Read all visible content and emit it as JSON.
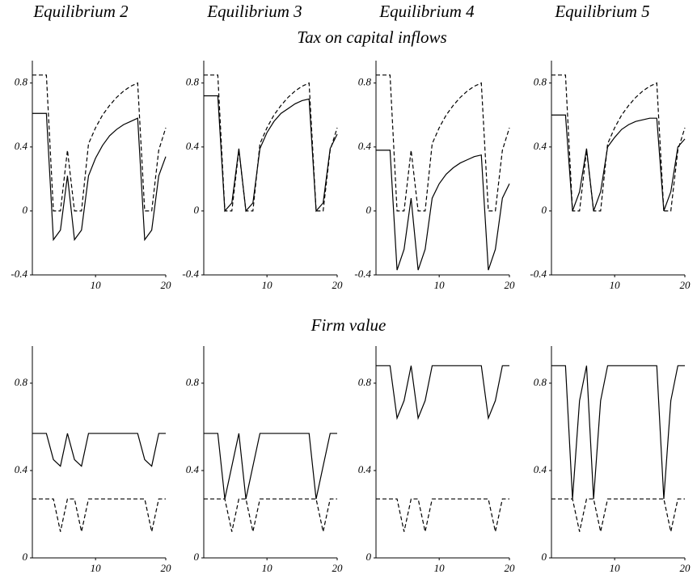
{
  "column_titles": [
    "Equilibrium 2",
    "Equilibrium 3",
    "Equilibrium 4",
    "Equilibrium 5"
  ],
  "row_titles": [
    "Tax on capital inflows",
    "Firm value"
  ],
  "chart_data": [
    {
      "type": "line",
      "x": [
        1,
        2,
        3,
        4,
        5,
        6,
        7,
        8,
        9,
        10,
        11,
        12,
        13,
        14,
        15,
        16,
        17,
        18,
        19,
        20
      ],
      "xlim": [
        1,
        20
      ],
      "xticks": [
        10,
        20
      ],
      "ylim": [
        -0.4,
        0.94
      ],
      "yticks": [
        -0.4,
        0,
        0.4,
        0.8
      ],
      "series": [
        {
          "style": "solid",
          "color": "#000000",
          "values": [
            0.61,
            0.61,
            0.61,
            -0.18,
            -0.12,
            0.22,
            -0.18,
            -0.12,
            0.22,
            0.33,
            0.41,
            0.47,
            0.51,
            0.54,
            0.56,
            0.58,
            -0.18,
            -0.12,
            0.22,
            0.34
          ]
        },
        {
          "style": "dashed",
          "color": "#000000",
          "values": [
            0.85,
            0.85,
            0.85,
            0,
            0,
            0.38,
            0,
            0,
            0.42,
            0.52,
            0.6,
            0.66,
            0.71,
            0.75,
            0.78,
            0.8,
            0,
            0,
            0.38,
            0.52
          ]
        }
      ]
    },
    {
      "type": "line",
      "x": [
        1,
        2,
        3,
        4,
        5,
        6,
        7,
        8,
        9,
        10,
        11,
        12,
        13,
        14,
        15,
        16,
        17,
        18,
        19,
        20
      ],
      "xlim": [
        1,
        20
      ],
      "xticks": [
        10,
        20
      ],
      "ylim": [
        -0.4,
        0.94
      ],
      "yticks": [
        -0.4,
        0,
        0.4,
        0.8
      ],
      "series": [
        {
          "style": "solid",
          "color": "#000000",
          "values": [
            0.72,
            0.72,
            0.72,
            0,
            0.05,
            0.39,
            0,
            0.05,
            0.39,
            0.49,
            0.56,
            0.61,
            0.64,
            0.67,
            0.69,
            0.7,
            0,
            0.05,
            0.39,
            0.48
          ]
        },
        {
          "style": "dashed",
          "color": "#000000",
          "values": [
            0.85,
            0.85,
            0.85,
            0,
            0,
            0.38,
            0,
            0,
            0.42,
            0.52,
            0.6,
            0.66,
            0.71,
            0.75,
            0.78,
            0.8,
            0,
            0,
            0.38,
            0.52
          ]
        }
      ]
    },
    {
      "type": "line",
      "x": [
        1,
        2,
        3,
        4,
        5,
        6,
        7,
        8,
        9,
        10,
        11,
        12,
        13,
        14,
        15,
        16,
        17,
        18,
        19,
        20
      ],
      "xlim": [
        1,
        20
      ],
      "xticks": [
        10,
        20
      ],
      "ylim": [
        -0.4,
        0.94
      ],
      "yticks": [
        -0.4,
        0,
        0.4,
        0.8
      ],
      "series": [
        {
          "style": "solid",
          "color": "#000000",
          "values": [
            0.38,
            0.38,
            0.38,
            -0.37,
            -0.24,
            0.08,
            -0.37,
            -0.24,
            0.08,
            0.17,
            0.23,
            0.27,
            0.3,
            0.32,
            0.34,
            0.35,
            -0.37,
            -0.24,
            0.08,
            0.17
          ]
        },
        {
          "style": "dashed",
          "color": "#000000",
          "values": [
            0.85,
            0.85,
            0.85,
            0,
            0,
            0.38,
            0,
            0,
            0.42,
            0.52,
            0.6,
            0.66,
            0.71,
            0.75,
            0.78,
            0.8,
            0,
            0,
            0.38,
            0.52
          ]
        }
      ]
    },
    {
      "type": "line",
      "x": [
        1,
        2,
        3,
        4,
        5,
        6,
        7,
        8,
        9,
        10,
        11,
        12,
        13,
        14,
        15,
        16,
        17,
        18,
        19,
        20
      ],
      "xlim": [
        1,
        20
      ],
      "xticks": [
        10,
        20
      ],
      "ylim": [
        -0.4,
        0.94
      ],
      "yticks": [
        -0.4,
        0,
        0.4,
        0.8
      ],
      "series": [
        {
          "style": "solid",
          "color": "#000000",
          "values": [
            0.6,
            0.6,
            0.6,
            0,
            0.12,
            0.39,
            0,
            0.12,
            0.4,
            0.46,
            0.51,
            0.54,
            0.56,
            0.57,
            0.58,
            0.58,
            0,
            0.12,
            0.4,
            0.45
          ]
        },
        {
          "style": "dashed",
          "color": "#000000",
          "values": [
            0.85,
            0.85,
            0.85,
            0,
            0,
            0.38,
            0,
            0,
            0.42,
            0.52,
            0.6,
            0.66,
            0.71,
            0.75,
            0.78,
            0.8,
            0,
            0,
            0.38,
            0.52
          ]
        }
      ]
    },
    {
      "type": "line",
      "x": [
        1,
        2,
        3,
        4,
        5,
        6,
        7,
        8,
        9,
        10,
        11,
        12,
        13,
        14,
        15,
        16,
        17,
        18,
        19,
        20
      ],
      "xlim": [
        1,
        20
      ],
      "xticks": [
        10,
        20
      ],
      "ylim": [
        0,
        0.97
      ],
      "yticks": [
        0,
        0.4,
        0.8
      ],
      "series": [
        {
          "style": "solid",
          "color": "#000000",
          "values": [
            0.57,
            0.57,
            0.57,
            0.45,
            0.42,
            0.57,
            0.45,
            0.42,
            0.57,
            0.57,
            0.57,
            0.57,
            0.57,
            0.57,
            0.57,
            0.57,
            0.45,
            0.42,
            0.57,
            0.57
          ]
        },
        {
          "style": "dashed",
          "color": "#000000",
          "values": [
            0.27,
            0.27,
            0.27,
            0.27,
            0.12,
            0.27,
            0.27,
            0.12,
            0.27,
            0.27,
            0.27,
            0.27,
            0.27,
            0.27,
            0.27,
            0.27,
            0.27,
            0.12,
            0.27,
            0.27
          ]
        }
      ]
    },
    {
      "type": "line",
      "x": [
        1,
        2,
        3,
        4,
        5,
        6,
        7,
        8,
        9,
        10,
        11,
        12,
        13,
        14,
        15,
        16,
        17,
        18,
        19,
        20
      ],
      "xlim": [
        1,
        20
      ],
      "xticks": [
        10,
        20
      ],
      "ylim": [
        0,
        0.97
      ],
      "yticks": [
        0,
        0.4,
        0.8
      ],
      "series": [
        {
          "style": "solid",
          "color": "#000000",
          "values": [
            0.57,
            0.57,
            0.57,
            0.27,
            0.42,
            0.57,
            0.27,
            0.42,
            0.57,
            0.57,
            0.57,
            0.57,
            0.57,
            0.57,
            0.57,
            0.57,
            0.27,
            0.42,
            0.57,
            0.57
          ]
        },
        {
          "style": "dashed",
          "color": "#000000",
          "values": [
            0.27,
            0.27,
            0.27,
            0.27,
            0.12,
            0.27,
            0.27,
            0.12,
            0.27,
            0.27,
            0.27,
            0.27,
            0.27,
            0.27,
            0.27,
            0.27,
            0.27,
            0.12,
            0.27,
            0.27
          ]
        }
      ]
    },
    {
      "type": "line",
      "x": [
        1,
        2,
        3,
        4,
        5,
        6,
        7,
        8,
        9,
        10,
        11,
        12,
        13,
        14,
        15,
        16,
        17,
        18,
        19,
        20
      ],
      "xlim": [
        1,
        20
      ],
      "xticks": [
        10,
        20
      ],
      "ylim": [
        0,
        0.97
      ],
      "yticks": [
        0,
        0.4,
        0.8
      ],
      "series": [
        {
          "style": "solid",
          "color": "#000000",
          "values": [
            0.88,
            0.88,
            0.88,
            0.64,
            0.72,
            0.88,
            0.64,
            0.72,
            0.88,
            0.88,
            0.88,
            0.88,
            0.88,
            0.88,
            0.88,
            0.88,
            0.64,
            0.72,
            0.88,
            0.88
          ]
        },
        {
          "style": "dashed",
          "color": "#000000",
          "values": [
            0.27,
            0.27,
            0.27,
            0.27,
            0.12,
            0.27,
            0.27,
            0.12,
            0.27,
            0.27,
            0.27,
            0.27,
            0.27,
            0.27,
            0.27,
            0.27,
            0.27,
            0.12,
            0.27,
            0.27
          ]
        }
      ]
    },
    {
      "type": "line",
      "x": [
        1,
        2,
        3,
        4,
        5,
        6,
        7,
        8,
        9,
        10,
        11,
        12,
        13,
        14,
        15,
        16,
        17,
        18,
        19,
        20
      ],
      "xlim": [
        1,
        20
      ],
      "xticks": [
        10,
        20
      ],
      "ylim": [
        0,
        0.97
      ],
      "yticks": [
        0,
        0.4,
        0.8
      ],
      "series": [
        {
          "style": "solid",
          "color": "#000000",
          "values": [
            0.88,
            0.88,
            0.88,
            0.27,
            0.72,
            0.88,
            0.27,
            0.72,
            0.88,
            0.88,
            0.88,
            0.88,
            0.88,
            0.88,
            0.88,
            0.88,
            0.27,
            0.72,
            0.88,
            0.88
          ]
        },
        {
          "style": "dashed",
          "color": "#000000",
          "values": [
            0.27,
            0.27,
            0.27,
            0.27,
            0.12,
            0.27,
            0.27,
            0.12,
            0.27,
            0.27,
            0.27,
            0.27,
            0.27,
            0.27,
            0.27,
            0.27,
            0.27,
            0.12,
            0.27,
            0.27
          ]
        }
      ]
    }
  ]
}
